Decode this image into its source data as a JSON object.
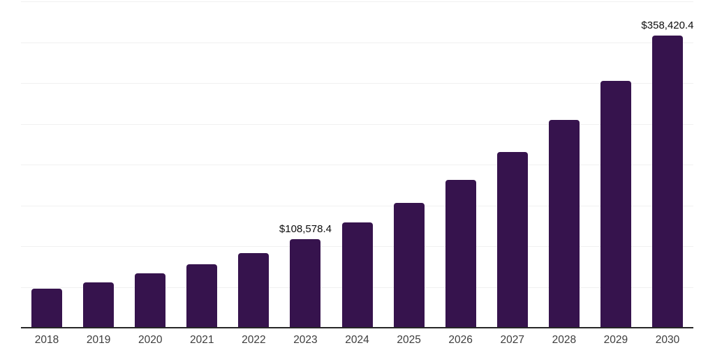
{
  "chart_data": {
    "type": "bar",
    "title": "",
    "xlabel": "",
    "ylabel": "",
    "categories": [
      "2018",
      "2019",
      "2020",
      "2021",
      "2022",
      "2023",
      "2024",
      "2025",
      "2026",
      "2027",
      "2028",
      "2029",
      "2030"
    ],
    "values": [
      47900,
      55600,
      66400,
      78000,
      91700,
      108578.4,
      129100,
      153000,
      181200,
      215400,
      254700,
      302600,
      358420.4
    ],
    "labeled_points": [
      {
        "category": "2023",
        "label": "$108,578.4"
      },
      {
        "category": "2030",
        "label": "$358,420.4"
      }
    ],
    "ylim": [
      0,
      400000
    ],
    "gridline_interval": 50000,
    "grid": "horizontal-only",
    "y_axis_labels": "none",
    "legend": "none",
    "colors": {
      "bar": "#36134D",
      "gridline": "#f0f0f0",
      "axis": "#262626",
      "tick_label": "#3d3d3d",
      "data_label": "#0d0d0d",
      "background": "#ffffff"
    }
  }
}
